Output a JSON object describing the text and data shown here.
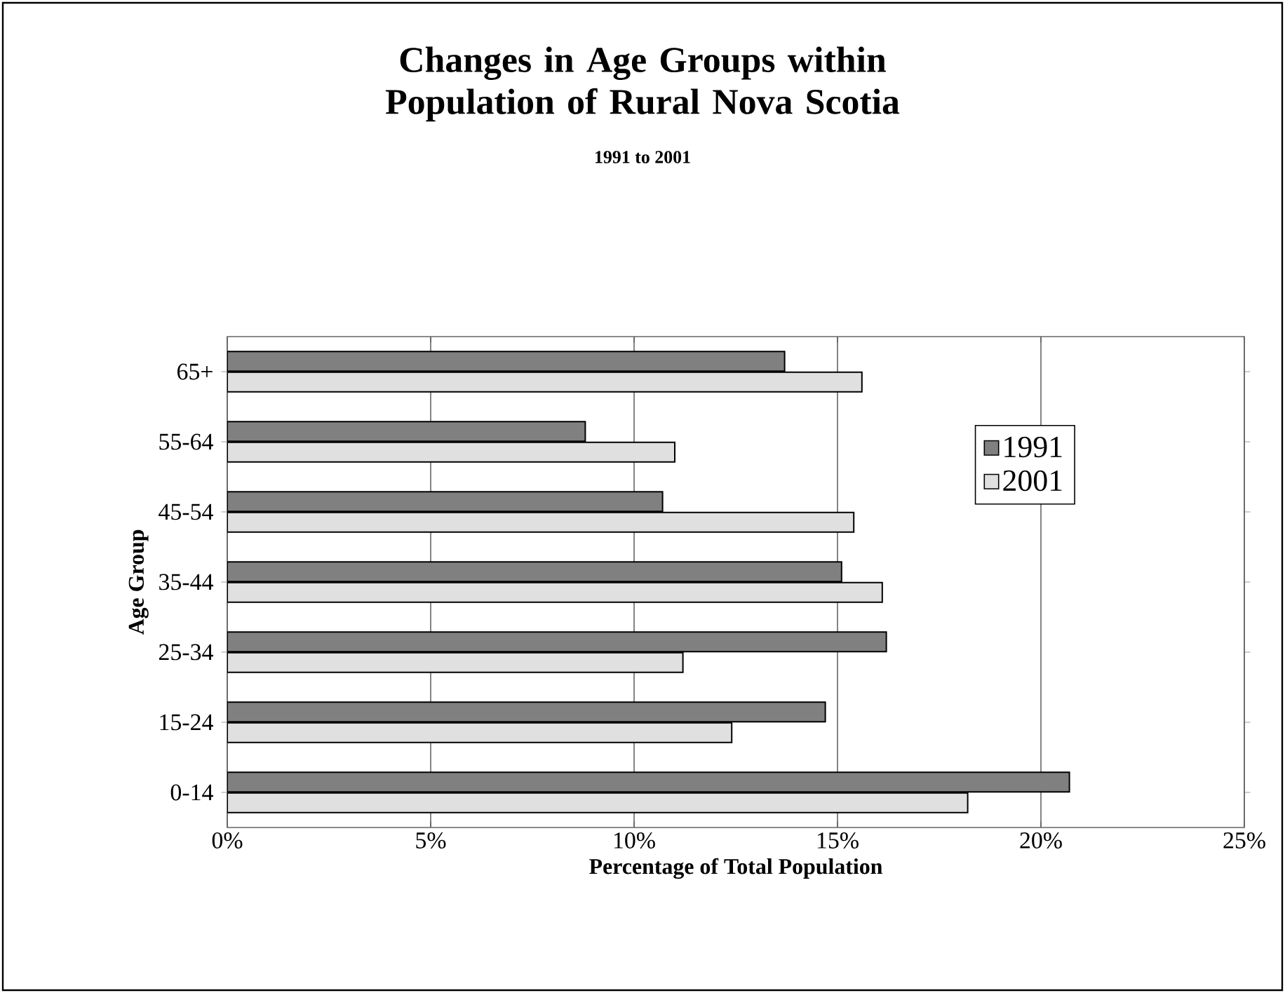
{
  "chart_data": {
    "type": "bar",
    "orientation": "horizontal",
    "title": "Changes in Age Groups within Population of Rural Nova Scotia",
    "subtitle": "1991 to 2001",
    "xlabel": "Percentage of Total Population",
    "ylabel": "Age Group",
    "categories": [
      "65+",
      "55-64",
      "45-54",
      "35-44",
      "25-34",
      "15-24",
      "0-14"
    ],
    "series": [
      {
        "name": "1991",
        "color": "#808080",
        "values": [
          13.7,
          8.8,
          10.7,
          15.1,
          16.2,
          14.7,
          20.7
        ]
      },
      {
        "name": "2001",
        "color": "#e0e0e0",
        "values": [
          15.6,
          11.0,
          15.4,
          16.1,
          11.2,
          12.4,
          18.2
        ]
      }
    ],
    "xlim": [
      0,
      25
    ],
    "xticks": [
      {
        "value": 0,
        "label": "0%"
      },
      {
        "value": 5,
        "label": "5%"
      },
      {
        "value": 10,
        "label": "10%"
      },
      {
        "value": 15,
        "label": "15%"
      },
      {
        "value": 20,
        "label": "20%"
      },
      {
        "value": 25,
        "label": "25%"
      }
    ],
    "grid": "x",
    "legend": "right"
  }
}
